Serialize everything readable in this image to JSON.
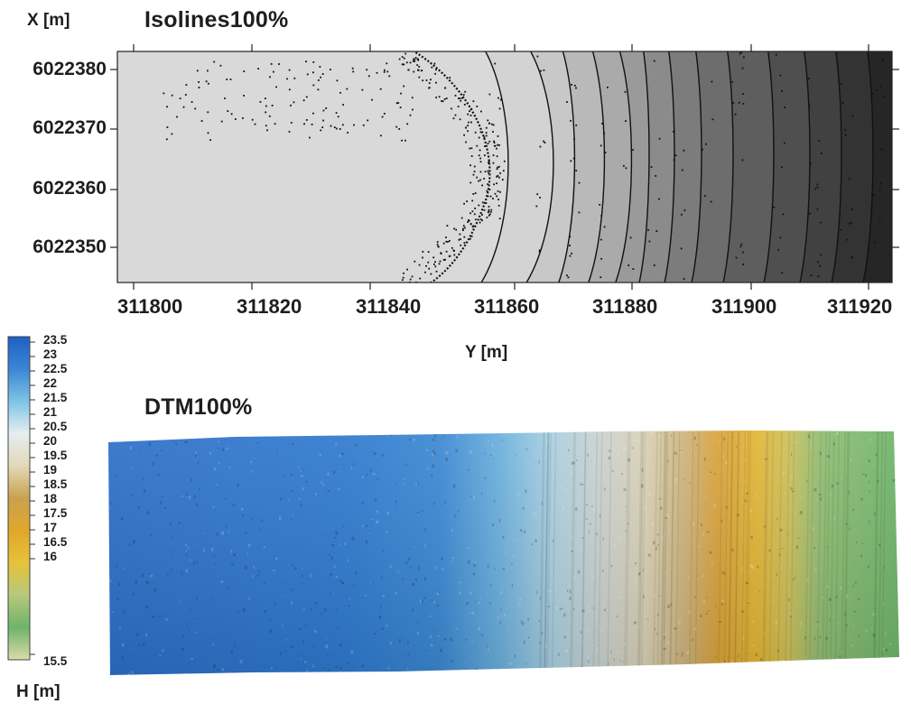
{
  "top_panel": {
    "title": "Isolines100%",
    "y_axis_label": "X [m]",
    "x_axis_label": "Y [m]",
    "y_ticks": [
      "6022380",
      "6022370",
      "6022360",
      "6022350"
    ],
    "x_ticks": [
      "311800",
      "311820",
      "311840",
      "311860",
      "311880",
      "311900",
      "311920"
    ],
    "shading": [
      "#d9d9d9",
      "#d3d3d3",
      "#c8c8c8",
      "#b9b9b9",
      "#aaaaaa",
      "#9a9a9a",
      "#8b8b8b",
      "#7c7c7c",
      "#6d6d6d",
      "#5e5e5e",
      "#4f4f4f",
      "#414141",
      "#333333",
      "#262626"
    ]
  },
  "bottom_panel": {
    "title": "DTM100%",
    "colorbar_unit": "H [m]",
    "colorbar_ticks": [
      "23.5",
      "23",
      "22.5",
      "22",
      "21.5",
      "21",
      "20.5",
      "20",
      "19.5",
      "19",
      "18.5",
      "18",
      "17.5",
      "17",
      "16.5",
      "16",
      "15.5"
    ],
    "colormap": [
      "#1f5fc4",
      "#3a86d4",
      "#7ec3e6",
      "#e6eef0",
      "#e2d8b8",
      "#c9a24e",
      "#e0a72a",
      "#e6c23a",
      "#b6c97c",
      "#6fb36a",
      "#d9dca8"
    ]
  },
  "chart_data": {
    "type": "heatmap",
    "panels": [
      {
        "name": "Isolines100%",
        "xlabel": "Y [m]",
        "ylabel": "X [m]",
        "xlim": [
          311795,
          311925
        ],
        "ylim": [
          6022344,
          6022382
        ],
        "x_ticks": [
          311800,
          311820,
          311840,
          311860,
          311880,
          311900,
          311920
        ],
        "y_ticks": [
          6022350,
          6022360,
          6022370,
          6022380
        ]
      },
      {
        "name": "DTM100%",
        "colorbar_label": "H [m]",
        "colorbar_range": [
          15.5,
          23.5
        ]
      }
    ]
  }
}
